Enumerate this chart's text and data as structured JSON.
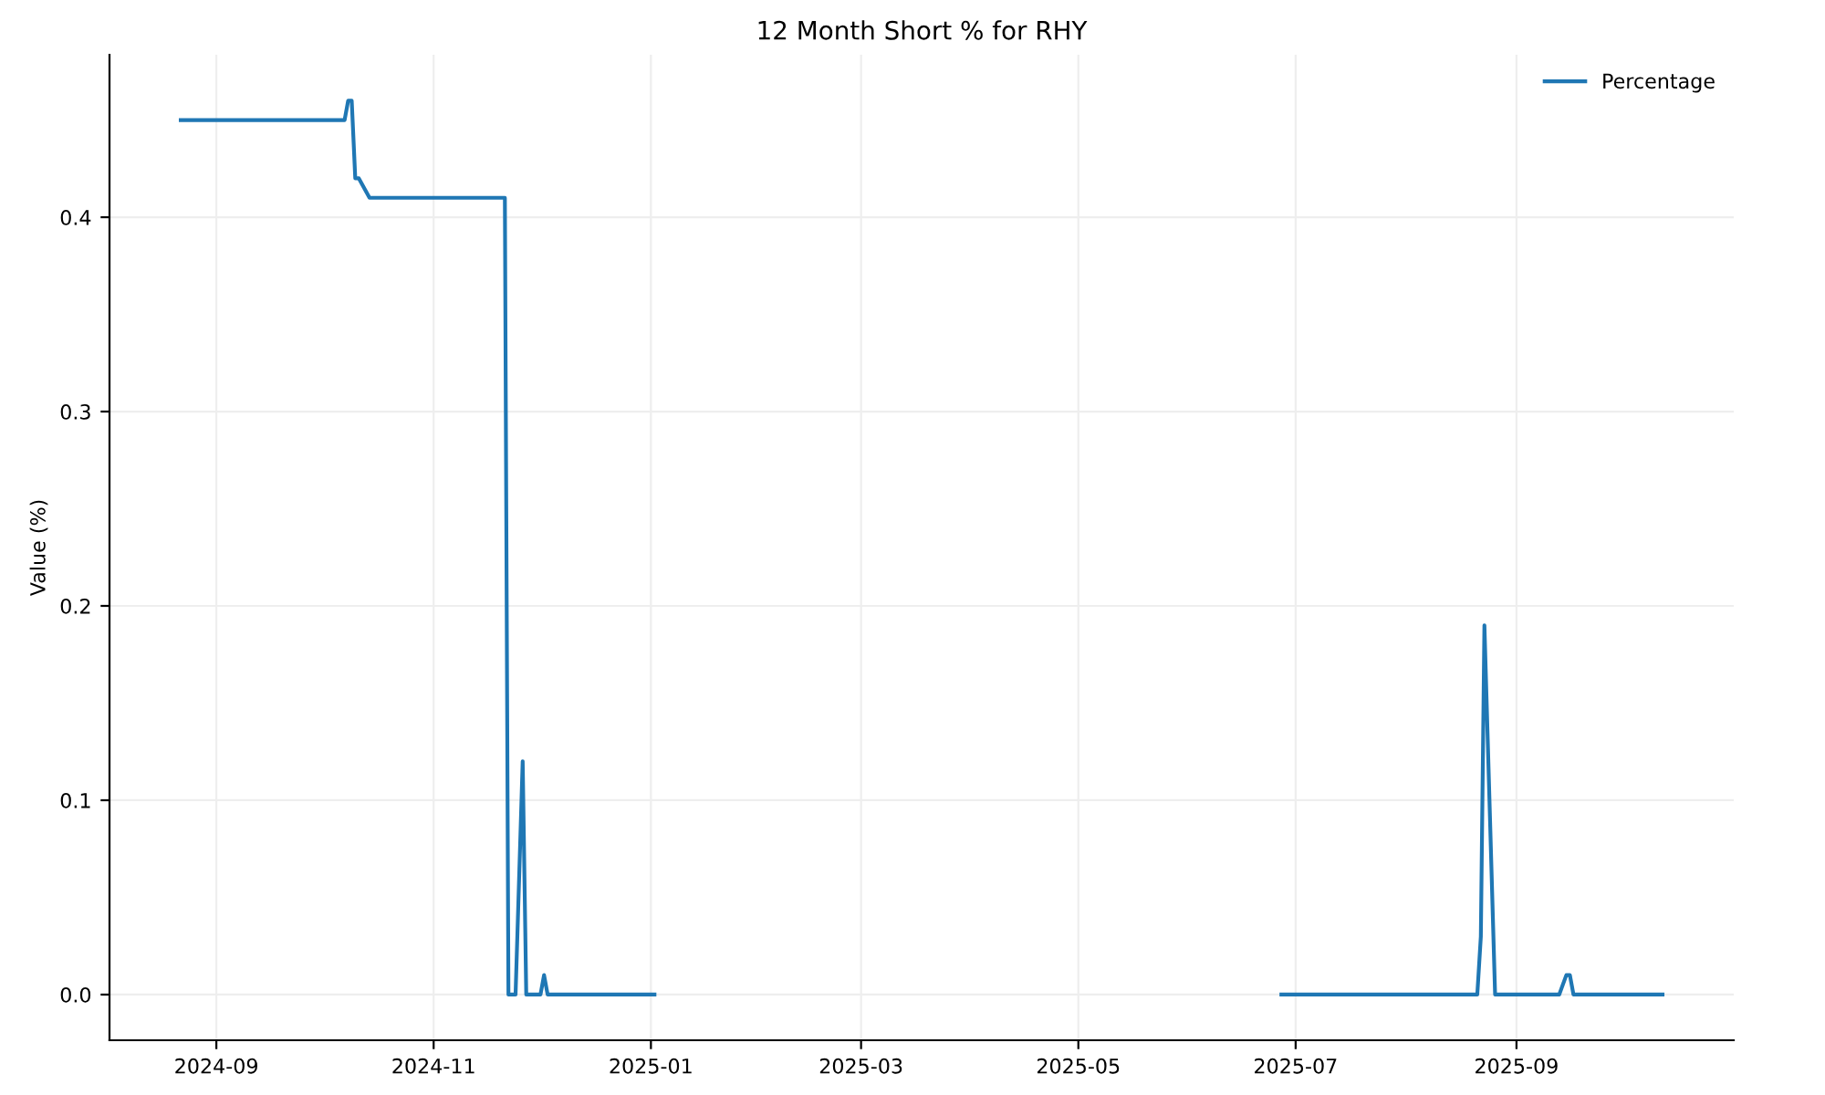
{
  "chart_data": {
    "type": "line",
    "title": "12 Month Short % for RHY",
    "ylabel": "Value (%)",
    "x": [
      "2024-08-22",
      "2024-10-07",
      "2024-10-08",
      "2024-10-09",
      "2024-10-10",
      "2024-10-11",
      "2024-10-14",
      "2024-11-21",
      "2024-11-22",
      "2024-11-24",
      "2024-11-26",
      "2024-11-27",
      "2024-12-01",
      "2024-12-02",
      "2024-12-03",
      "2025-01-02",
      "2025-03-01",
      "2025-06-27",
      "2025-08-21",
      "2025-08-22",
      "2025-08-23",
      "2025-08-26",
      "2025-09-13",
      "2025-09-15",
      "2025-09-16",
      "2025-09-17",
      "2025-10-12"
    ],
    "series": [
      {
        "name": "Percentage",
        "color": "#1f77b4",
        "values": [
          0.45,
          0.45,
          0.46,
          0.46,
          0.42,
          0.42,
          0.41,
          0.41,
          0.0,
          0.0,
          0.12,
          0.0,
          0.0,
          0.01,
          0.0,
          0.0,
          null,
          0.0,
          0.0,
          0.03,
          0.19,
          0.0,
          0.0,
          0.01,
          0.01,
          0.0,
          0.0
        ]
      }
    ],
    "xlim": [
      "2024-08-02",
      "2025-11-01"
    ],
    "xticks": [
      {
        "value": "2024-09-01",
        "label": "2024-09"
      },
      {
        "value": "2024-11-01",
        "label": "2024-11"
      },
      {
        "value": "2025-01-01",
        "label": "2025-01"
      },
      {
        "value": "2025-03-01",
        "label": "2025-03"
      },
      {
        "value": "2025-05-01",
        "label": "2025-05"
      },
      {
        "value": "2025-07-01",
        "label": "2025-07"
      },
      {
        "value": "2025-09-01",
        "label": "2025-09"
      }
    ],
    "ylim": [
      -0.0235,
      0.4836
    ],
    "yticks": [
      {
        "value": 0,
        "label": "0.0"
      },
      {
        "value": 0.1,
        "label": "0.1"
      },
      {
        "value": 0.2,
        "label": "0.2"
      },
      {
        "value": 0.3,
        "label": "0.3"
      },
      {
        "value": 0.4,
        "label": "0.4"
      }
    ],
    "grid": true,
    "legend": "top right",
    "marker": "none",
    "line_style": "solid"
  }
}
